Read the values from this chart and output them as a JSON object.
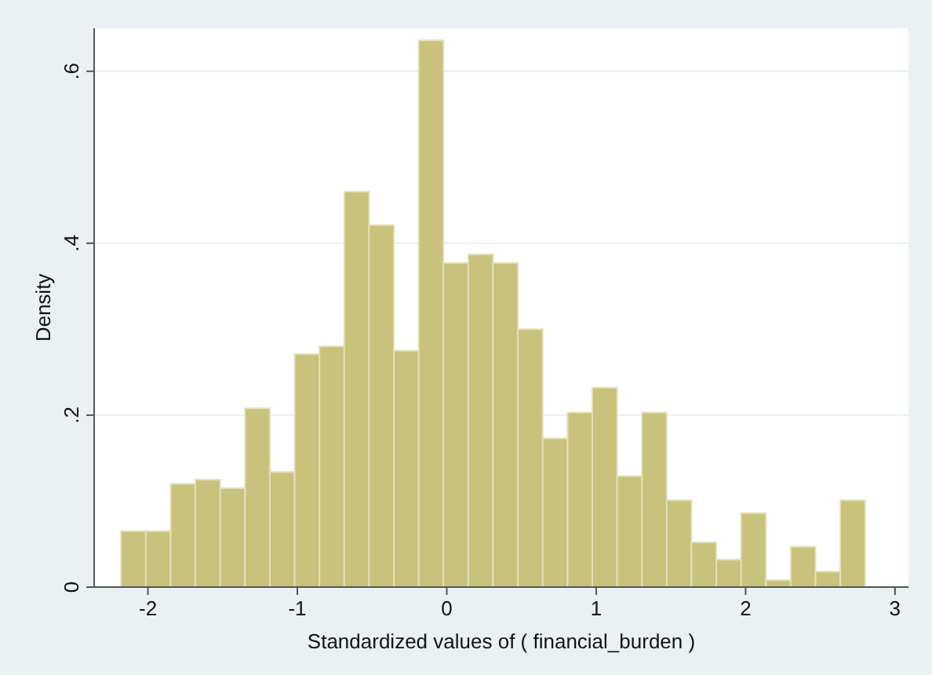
{
  "chart_data": {
    "type": "histogram",
    "xlabel": "Standardized values of ( financial_burden )",
    "ylabel": "Density",
    "bins": [
      -2.18,
      -2.014,
      -1.848,
      -1.682,
      -1.516,
      -1.35,
      -1.184,
      -1.018,
      -0.852,
      -0.686,
      -0.52,
      -0.354,
      -0.188,
      -0.022,
      0.144,
      0.31,
      0.476,
      0.642,
      0.808,
      0.974,
      1.14,
      1.306,
      1.472,
      1.638,
      1.804,
      1.97,
      2.136,
      2.302,
      2.468,
      2.634,
      2.8
    ],
    "values": [
      0.065,
      0.065,
      0.12,
      0.125,
      0.115,
      0.208,
      0.134,
      0.271,
      0.28,
      0.46,
      0.421,
      0.275,
      0.636,
      0.377,
      0.387,
      0.377,
      0.3,
      0.173,
      0.203,
      0.232,
      0.129,
      0.203,
      0.101,
      0.052,
      0.032,
      0.086,
      0.008,
      0.047,
      0.018,
      0.101
    ],
    "color": "#c9c27d",
    "xlim": [
      -2.36,
      3.09
    ],
    "ylim": [
      0,
      0.65
    ],
    "xticks": [
      -2,
      -1,
      0,
      1,
      2,
      3
    ],
    "yticks": [
      0,
      {
        "value": 0.2,
        "label": ".2"
      },
      {
        "value": 0.4,
        "label": ".4"
      },
      {
        "value": 0.6,
        "label": ".6"
      }
    ],
    "grid": "y"
  }
}
